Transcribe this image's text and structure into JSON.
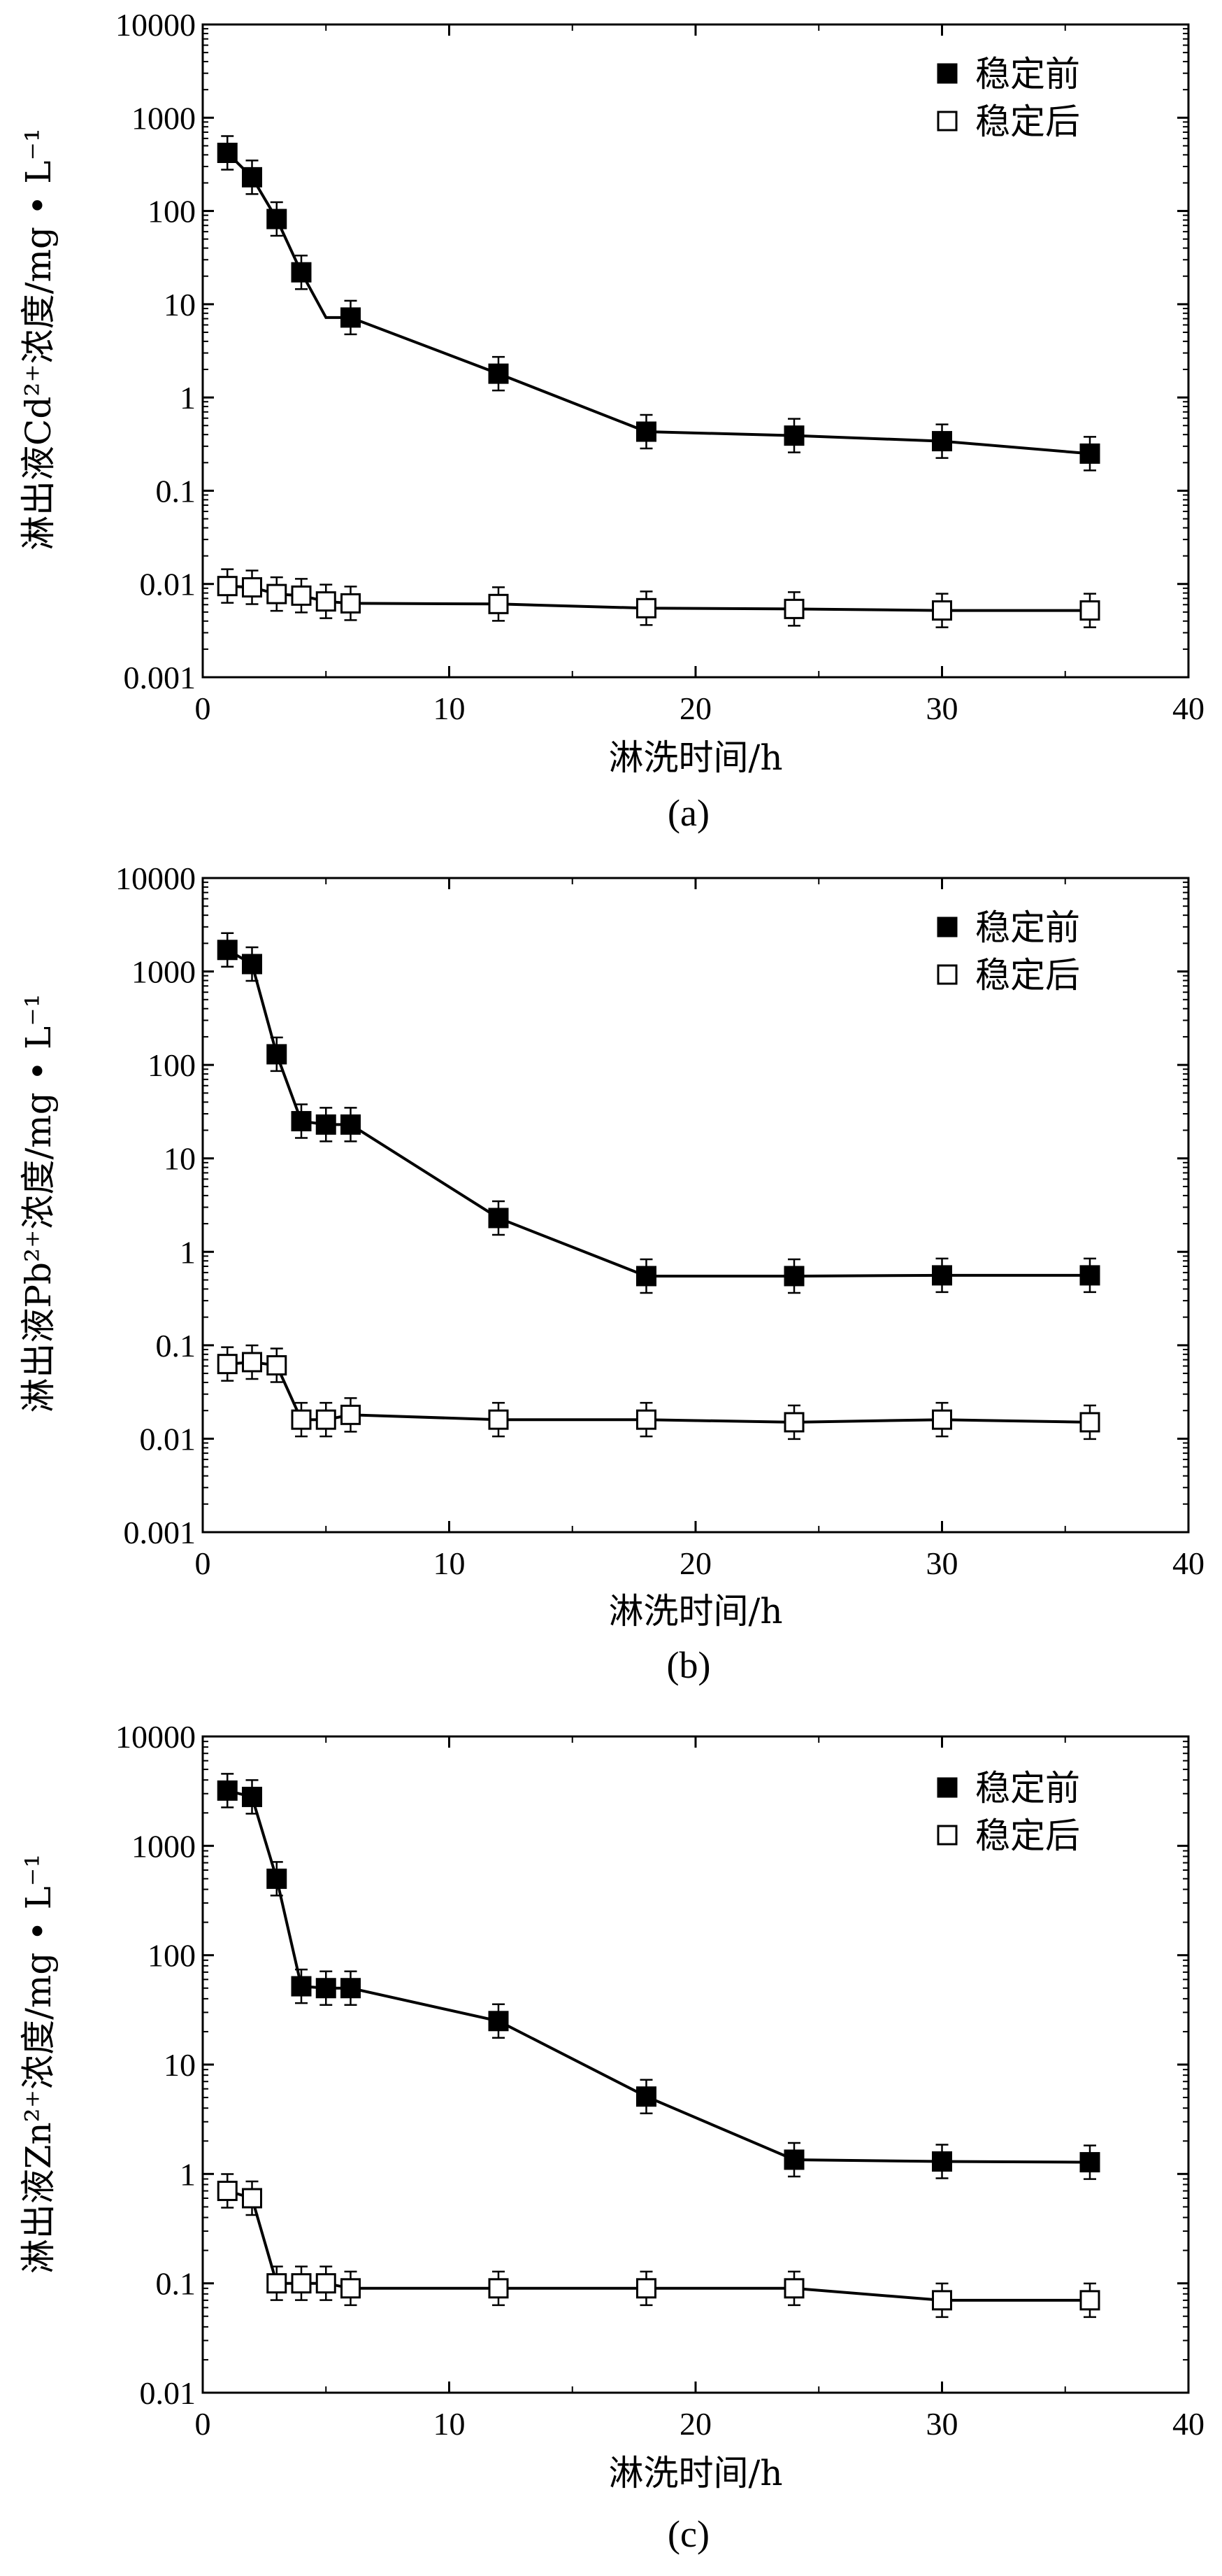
{
  "chart_data": [
    {
      "type": "line",
      "panel_label": "(a)",
      "xlabel": "淋洗时间/h",
      "ylabel": "淋出液Cd²⁺浓度/mg • L⁻¹",
      "xlim": [
        0,
        40
      ],
      "ylim": [
        0.001,
        10000
      ],
      "yscale": "log",
      "xticks": [
        0,
        10,
        20,
        30,
        40
      ],
      "xtick_labels": [
        "0",
        "10",
        "20",
        "30",
        "40"
      ],
      "yticks": [
        0.001,
        0.01,
        0.1,
        1,
        10,
        100,
        1000,
        10000
      ],
      "ytick_labels": [
        "0.001",
        "0.01",
        "0.1",
        "1",
        "10",
        "100",
        "1000",
        "10000"
      ],
      "legend_position": "top-right",
      "grid": false,
      "series": [
        {
          "name": "稳定前",
          "marker": "filled-square",
          "x": [
            1,
            2,
            3,
            4,
            6,
            12,
            18,
            24,
            30,
            36
          ],
          "y": [
            420,
            230,
            82,
            22,
            7.2,
            1.8,
            0.43,
            0.39,
            0.34,
            0.25
          ],
          "line_path": [
            [
              1,
              420
            ],
            [
              2,
              230
            ],
            [
              3,
              82
            ],
            [
              4,
              22
            ],
            [
              5,
              7.2
            ],
            [
              6,
              7.2
            ],
            [
              12,
              1.8
            ],
            [
              18,
              0.43
            ],
            [
              24,
              0.39
            ],
            [
              30,
              0.34
            ],
            [
              36,
              0.25
            ]
          ]
        },
        {
          "name": "稳定后",
          "marker": "open-square",
          "x": [
            1,
            2,
            3,
            4,
            5,
            6,
            12,
            18,
            24,
            30,
            36
          ],
          "y": [
            0.0095,
            0.0092,
            0.0078,
            0.0075,
            0.0065,
            0.0062,
            0.0061,
            0.0055,
            0.0054,
            0.0052,
            0.0052
          ]
        }
      ]
    },
    {
      "type": "line",
      "panel_label": "(b)",
      "xlabel": "淋洗时间/h",
      "ylabel": "淋出液Pb²⁺浓度/mg • L⁻¹",
      "xlim": [
        0,
        40
      ],
      "ylim": [
        0.001,
        10000
      ],
      "yscale": "log",
      "xticks": [
        0,
        10,
        20,
        30,
        40
      ],
      "xtick_labels": [
        "0",
        "10",
        "20",
        "30",
        "40"
      ],
      "yticks": [
        0.001,
        0.01,
        0.1,
        1,
        10,
        100,
        1000,
        10000
      ],
      "ytick_labels": [
        "0.001",
        "0.01",
        "0.1",
        "1",
        "10",
        "100",
        "1000",
        "10000"
      ],
      "legend_position": "top-right",
      "grid": false,
      "series": [
        {
          "name": "稳定前",
          "marker": "filled-square",
          "x": [
            1,
            2,
            3,
            4,
            5,
            6,
            12,
            18,
            24,
            30,
            36
          ],
          "y": [
            1700,
            1200,
            130,
            25,
            23,
            23,
            2.3,
            0.55,
            0.55,
            0.56,
            0.56
          ]
        },
        {
          "name": "稳定后",
          "marker": "open-square",
          "x": [
            1,
            2,
            3,
            4,
            5,
            6,
            12,
            18,
            24,
            30,
            36
          ],
          "y": [
            0.063,
            0.066,
            0.061,
            0.016,
            0.016,
            0.018,
            0.016,
            0.016,
            0.015,
            0.016,
            0.015
          ]
        }
      ]
    },
    {
      "type": "line",
      "panel_label": "(c)",
      "xlabel": "淋洗时间/h",
      "ylabel": "淋出液Zn²⁺浓度/mg • L⁻¹",
      "xlim": [
        0,
        40
      ],
      "ylim": [
        0.01,
        10000
      ],
      "yscale": "log",
      "xticks": [
        0,
        10,
        20,
        30,
        40
      ],
      "xtick_labels": [
        "0",
        "10",
        "20",
        "30",
        "40"
      ],
      "yticks": [
        0.01,
        0.1,
        1,
        10,
        100,
        1000,
        10000
      ],
      "ytick_labels": [
        "0.01",
        "0.1",
        "1",
        "10",
        "100",
        "1000",
        "10000"
      ],
      "legend_position": "top-right",
      "grid": false,
      "series": [
        {
          "name": "稳定前",
          "marker": "filled-square",
          "x": [
            1,
            2,
            3,
            4,
            5,
            6,
            12,
            18,
            24,
            30,
            36
          ],
          "y": [
            3200,
            2800,
            500,
            52,
            50,
            50,
            25,
            5.1,
            1.35,
            1.3,
            1.28
          ]
        },
        {
          "name": "稳定后",
          "marker": "open-square",
          "x": [
            1,
            2,
            3,
            4,
            5,
            6,
            12,
            18,
            24,
            30,
            36
          ],
          "y": [
            0.7,
            0.6,
            0.1,
            0.1,
            0.1,
            0.09,
            0.09,
            0.09,
            0.09,
            0.07,
            0.07
          ]
        }
      ]
    }
  ]
}
